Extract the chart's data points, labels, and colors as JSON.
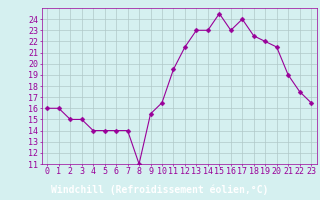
{
  "x": [
    0,
    1,
    2,
    3,
    4,
    5,
    6,
    7,
    8,
    9,
    10,
    11,
    12,
    13,
    14,
    15,
    16,
    17,
    18,
    19,
    20,
    21,
    22,
    23
  ],
  "y": [
    16,
    16,
    15,
    15,
    14,
    14,
    14,
    14,
    11,
    15.5,
    16.5,
    19.5,
    21.5,
    23,
    23,
    24.5,
    23,
    24,
    22.5,
    22,
    21.5,
    19,
    17.5,
    16.5
  ],
  "line_color": "#990099",
  "marker_size": 2.5,
  "bg_color": "#d5f0f0",
  "grid_color": "#b0c8c8",
  "xlabel": "Windchill (Refroidissement éolien,°C)",
  "xlabel_color": "#ffffff",
  "xlabel_bg": "#880088",
  "xlabel_fontsize": 7,
  "ylim_min": 11,
  "ylim_max": 25,
  "xlim_min": -0.5,
  "xlim_max": 23.5,
  "tick_color": "#990099",
  "tick_fontsize": 6,
  "spine_color": "#990099"
}
